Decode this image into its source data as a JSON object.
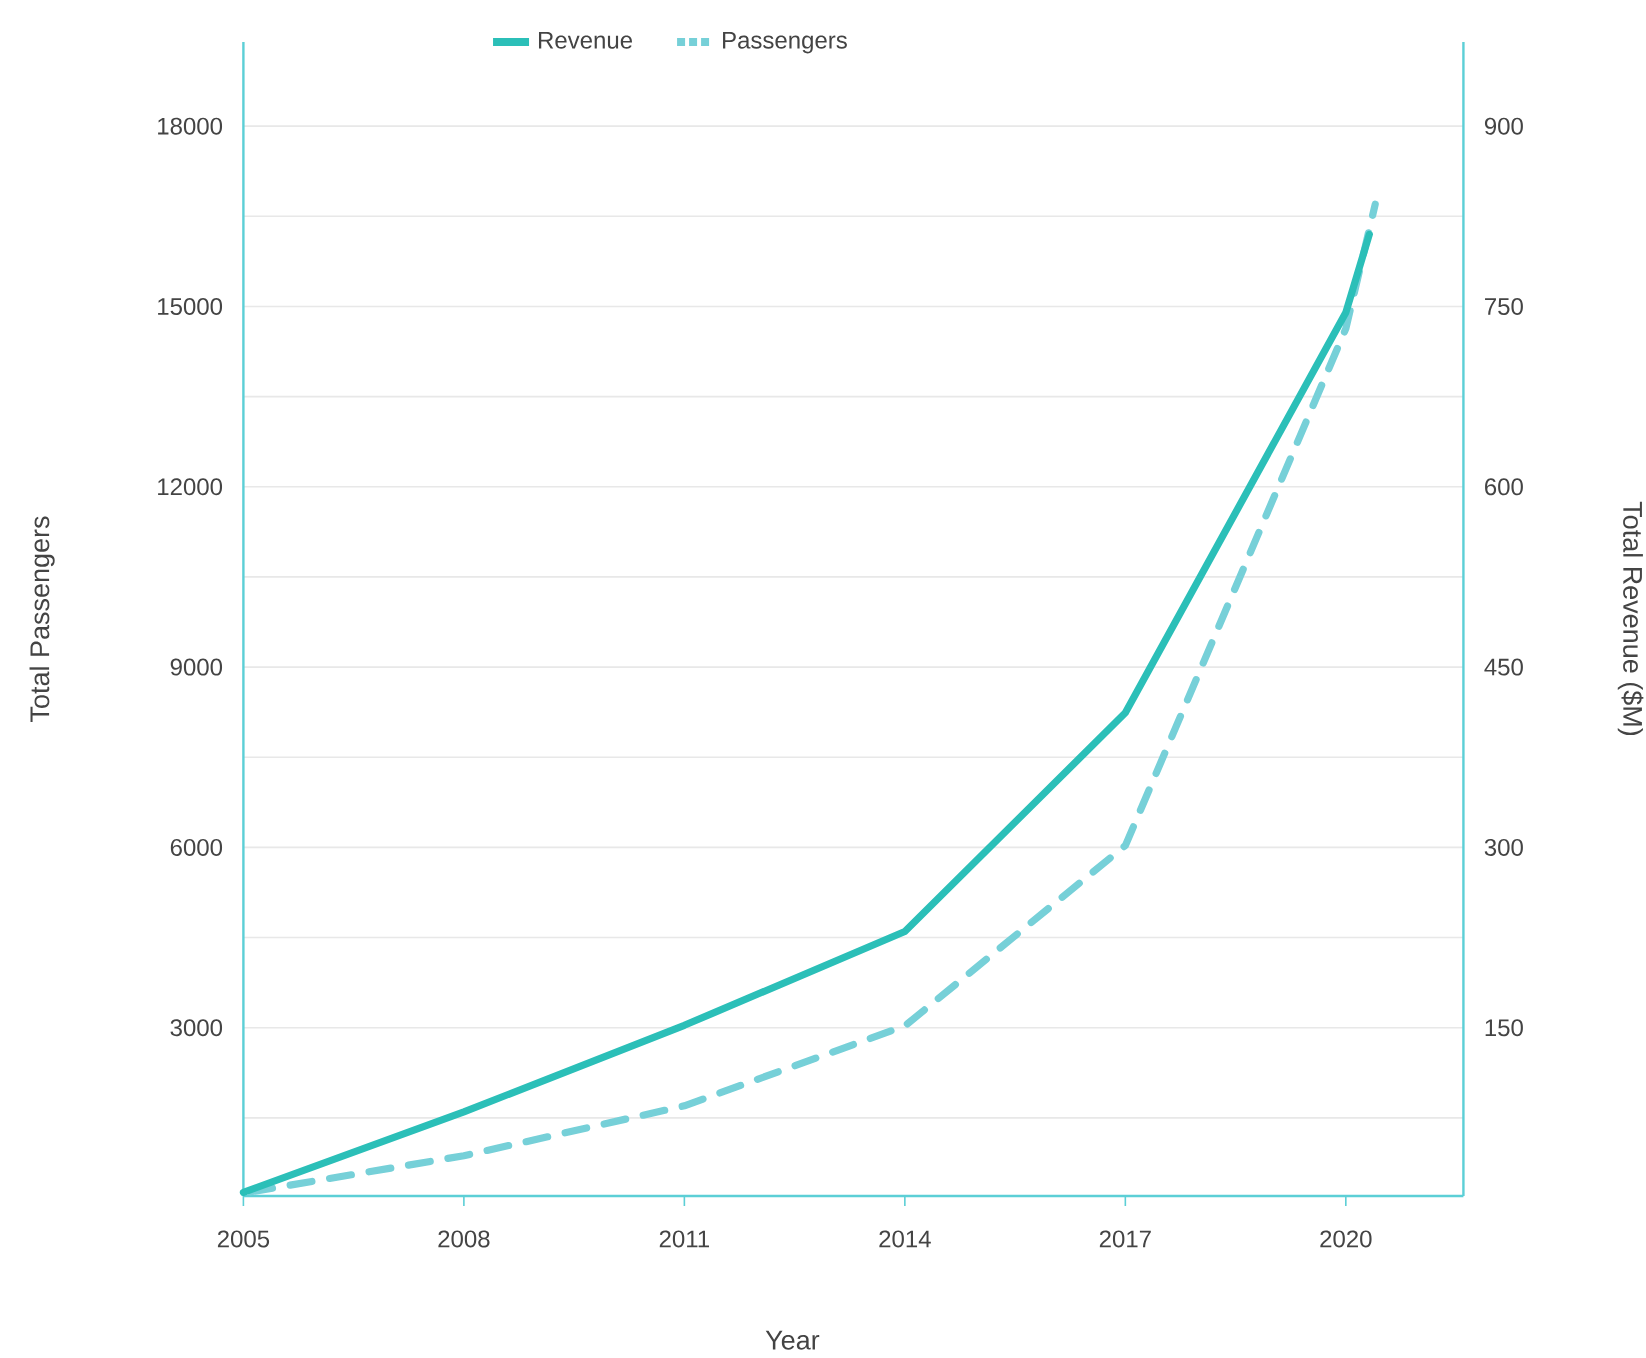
{
  "chart_data": {
    "type": "line",
    "xlabel": "Year",
    "ylabel": "Total Passengers",
    "y2label": "Total Revenue ($M)",
    "xlim": [
      2005,
      2021.6
    ],
    "xticks": [
      2005,
      2008,
      2011,
      2014,
      2017,
      2020
    ],
    "ylim": [
      200,
      19400
    ],
    "yticks": [
      {
        "value": 1500,
        "label": null
      },
      3000,
      {
        "value": 4500,
        "label": null
      },
      6000,
      {
        "value": 7500,
        "label": null
      },
      9000,
      {
        "value": 10500,
        "label": null
      },
      12000,
      {
        "value": 13500,
        "label": null
      },
      15000,
      {
        "value": 16500,
        "label": null
      },
      18000
    ],
    "y2lim": [
      10,
      970
    ],
    "y2ticks": [
      150,
      300,
      450,
      600,
      750,
      900
    ],
    "grid": "y",
    "legend": "top",
    "marker": "none",
    "series": [
      {
        "name": "Revenue",
        "color": "#2bbfb8",
        "axis": "y2",
        "line_style": "solid",
        "x": [
          2005,
          2008,
          2011,
          2014,
          2017,
          2020,
          2020.32
        ],
        "values": [
          13,
          80,
          152,
          230,
          412,
          745,
          810
        ]
      },
      {
        "name": "Passengers",
        "color": "#76d0d8",
        "axis": "y",
        "line_style": "dashed",
        "x": [
          2005.1,
          2008,
          2011,
          2014,
          2017,
          2020,
          2020.4
        ],
        "values": [
          270,
          870,
          1700,
          3030,
          6030,
          14630,
          16700
        ]
      }
    ]
  }
}
